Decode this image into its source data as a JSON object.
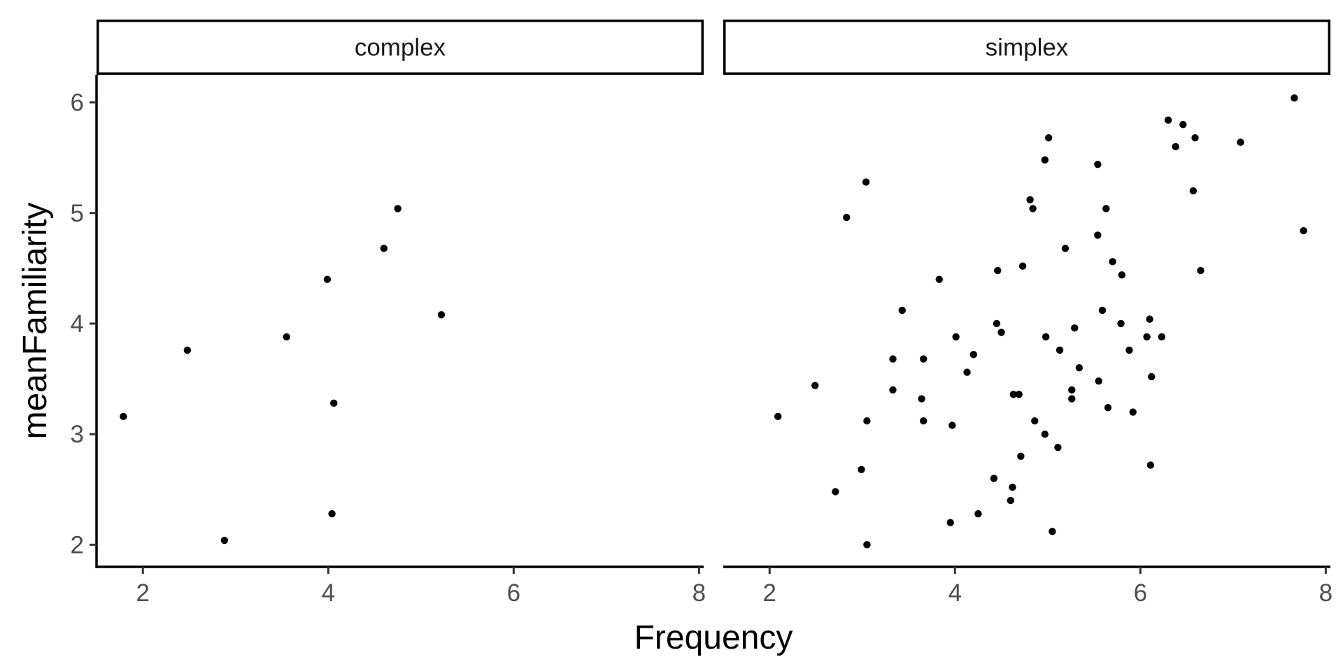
{
  "chart_data": {
    "type": "scatter",
    "facet_variable": "type",
    "xlabel": "Frequency",
    "ylabel": "meanFamiliarity",
    "xlim": [
      1.5,
      8.05
    ],
    "ylim": [
      1.8,
      6.25
    ],
    "x_ticks": [
      2,
      4,
      6,
      8
    ],
    "y_ticks": [
      2,
      3,
      4,
      5,
      6
    ],
    "grid": false,
    "legend": "none",
    "point_color": "#000000",
    "panels": [
      {
        "name": "complex",
        "points": [
          [
            1.79,
            3.16
          ],
          [
            2.48,
            3.76
          ],
          [
            2.88,
            2.04
          ],
          [
            3.55,
            3.88
          ],
          [
            3.99,
            4.4
          ],
          [
            4.04,
            2.28
          ],
          [
            4.06,
            3.28
          ],
          [
            4.6,
            4.68
          ],
          [
            4.75,
            5.04
          ],
          [
            5.22,
            4.08
          ]
        ]
      },
      {
        "name": "simplex",
        "points": [
          [
            2.09,
            3.16
          ],
          [
            2.49,
            3.44
          ],
          [
            2.71,
            2.48
          ],
          [
            2.83,
            4.96
          ],
          [
            2.99,
            2.68
          ],
          [
            3.04,
            5.28
          ],
          [
            3.05,
            3.12
          ],
          [
            3.05,
            2.0
          ],
          [
            3.33,
            3.68
          ],
          [
            3.33,
            3.4
          ],
          [
            3.43,
            4.12
          ],
          [
            3.64,
            3.32
          ],
          [
            3.66,
            3.68
          ],
          [
            3.66,
            3.12
          ],
          [
            3.83,
            4.4
          ],
          [
            3.95,
            2.2
          ],
          [
            3.97,
            3.08
          ],
          [
            4.01,
            3.88
          ],
          [
            4.13,
            3.56
          ],
          [
            4.2,
            3.72
          ],
          [
            4.25,
            2.28
          ],
          [
            4.42,
            2.6
          ],
          [
            4.45,
            4.0
          ],
          [
            4.46,
            4.48
          ],
          [
            4.5,
            3.92
          ],
          [
            4.6,
            2.4
          ],
          [
            4.62,
            2.52
          ],
          [
            4.63,
            3.36
          ],
          [
            4.69,
            3.36
          ],
          [
            4.71,
            2.8
          ],
          [
            4.73,
            4.52
          ],
          [
            4.81,
            5.12
          ],
          [
            4.84,
            5.04
          ],
          [
            4.86,
            3.12
          ],
          [
            4.97,
            5.48
          ],
          [
            4.97,
            3.0
          ],
          [
            4.98,
            3.88
          ],
          [
            5.01,
            5.68
          ],
          [
            5.05,
            2.12
          ],
          [
            5.11,
            2.88
          ],
          [
            5.13,
            3.76
          ],
          [
            5.19,
            4.68
          ],
          [
            5.26,
            3.4
          ],
          [
            5.26,
            3.32
          ],
          [
            5.29,
            3.96
          ],
          [
            5.34,
            3.6
          ],
          [
            5.54,
            5.44
          ],
          [
            5.54,
            4.8
          ],
          [
            5.55,
            3.48
          ],
          [
            5.59,
            4.12
          ],
          [
            5.63,
            5.04
          ],
          [
            5.65,
            3.24
          ],
          [
            5.7,
            4.56
          ],
          [
            5.79,
            4.0
          ],
          [
            5.8,
            4.44
          ],
          [
            5.88,
            3.76
          ],
          [
            5.92,
            3.2
          ],
          [
            6.07,
            3.88
          ],
          [
            6.1,
            4.04
          ],
          [
            6.11,
            2.72
          ],
          [
            6.12,
            3.52
          ],
          [
            6.23,
            3.88
          ],
          [
            6.3,
            5.84
          ],
          [
            6.38,
            5.6
          ],
          [
            6.46,
            5.8
          ],
          [
            6.57,
            5.2
          ],
          [
            6.59,
            5.68
          ],
          [
            6.65,
            4.48
          ],
          [
            7.08,
            5.64
          ],
          [
            7.66,
            6.04
          ],
          [
            7.76,
            4.84
          ]
        ]
      }
    ]
  }
}
